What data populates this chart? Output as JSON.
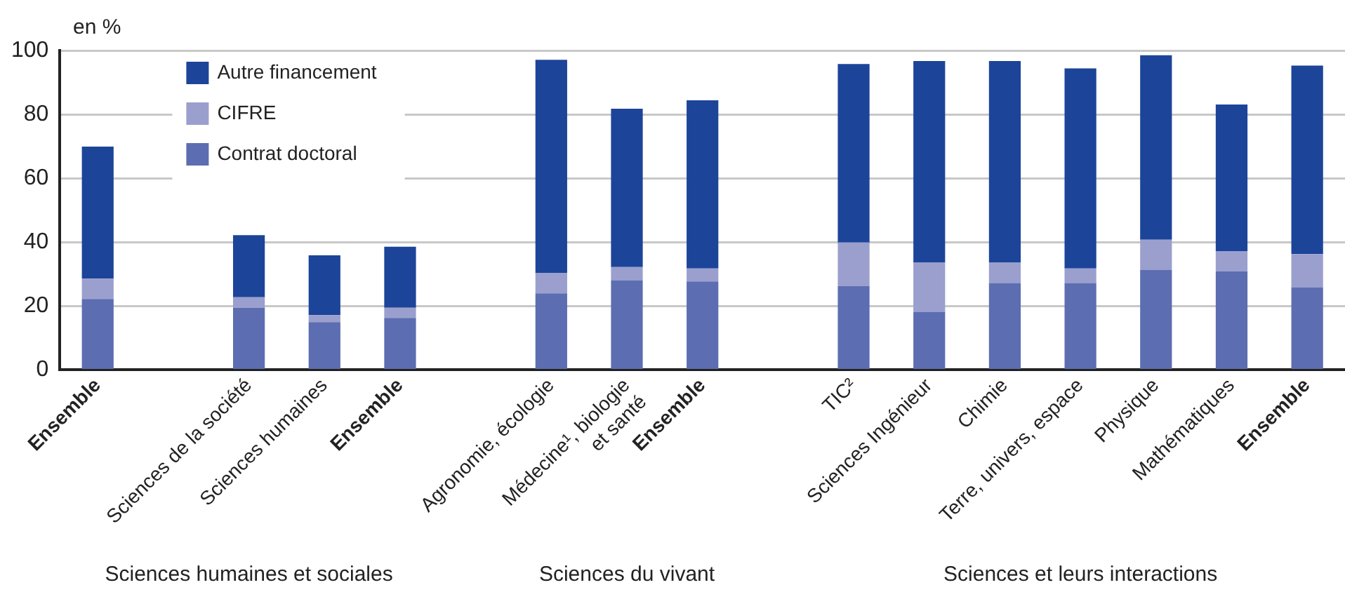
{
  "chart_data": {
    "type": "bar",
    "stacked": true,
    "ylabel": "en %",
    "categories": [
      "Ensemble",
      null,
      "Sciences de la société",
      "Sciences humaines",
      "Ensemble",
      null,
      "Agronomie, écologie",
      "Médecine¹, biologie et santé",
      "Ensemble",
      null,
      "TIC²",
      "Sciences Ingénieur",
      "Chimie",
      "Terre, univers, espace",
      "Physique",
      "Mathématiques",
      "Ensemble"
    ],
    "series": [
      {
        "name": "Contrat doctoral",
        "color": "#5d6db1",
        "values": [
          22.2,
          null,
          19.5,
          15,
          16.3,
          null,
          24,
          28.1,
          27.7,
          null,
          26.3,
          18.2,
          27.2,
          27.2,
          31.3,
          30.9,
          25.9
        ]
      },
      {
        "name": "CIFRE",
        "color": "#9a9fce",
        "values": [
          6.4,
          null,
          3.3,
          2.2,
          3.2,
          null,
          6.4,
          4.1,
          4.1,
          null,
          13.6,
          15.4,
          6.4,
          4.6,
          9.5,
          6.3,
          10.4
        ]
      },
      {
        "name": "Autre financement",
        "color": "#1c4499",
        "values": [
          41.3,
          null,
          19.4,
          18.7,
          19.1,
          null,
          66.7,
          49.6,
          52.6,
          null,
          55.9,
          63.1,
          63.1,
          62.6,
          57.7,
          45.9,
          59
        ]
      }
    ],
    "ylim": [
      0,
      100
    ],
    "yticks": [
      0,
      20,
      40,
      60,
      80,
      100
    ],
    "grid": "y",
    "legend": "top left",
    "annotations": [
      "Sciences humaines et sociales",
      "Sciences du vivant",
      "Sciences et leurs interactions"
    ]
  }
}
